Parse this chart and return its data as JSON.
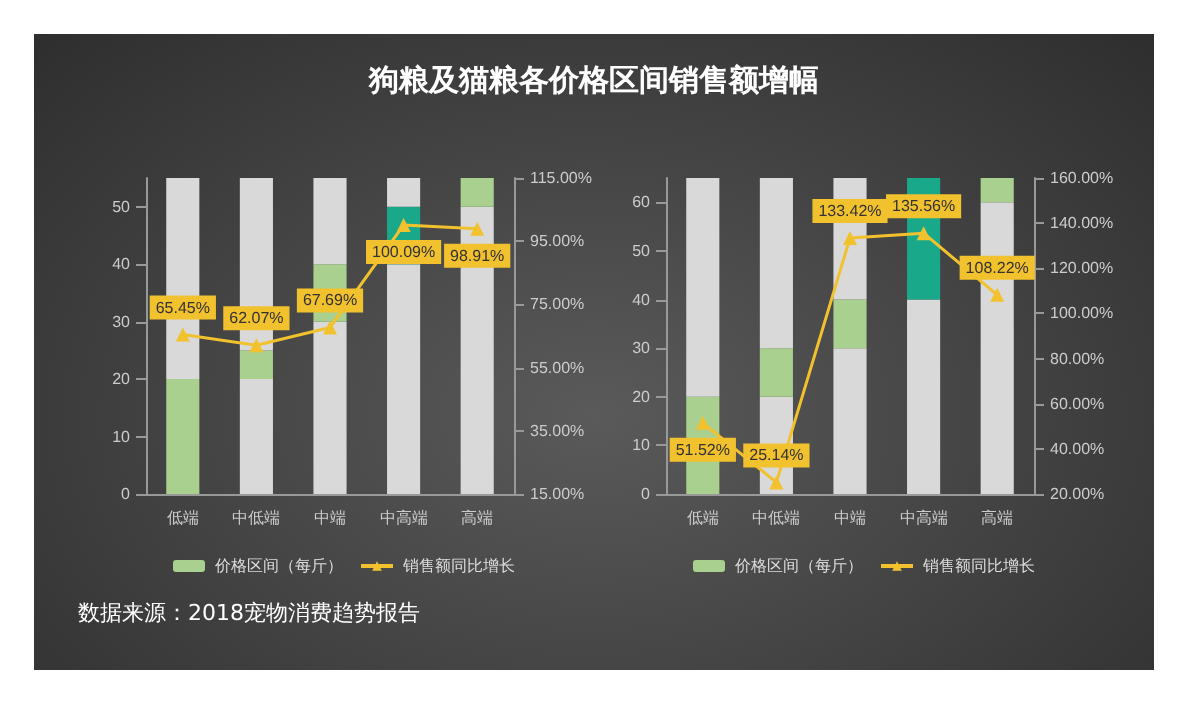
{
  "chart_data": [
    {
      "type": "bar",
      "title": "狗粮及猫粮各价格区间销售额增幅",
      "annotations": [
        "数据来源：2018宠物消费趋势报告"
      ],
      "categories": [
        "低端",
        "中低端",
        "中端",
        "中高端",
        "高端"
      ],
      "stacked": true,
      "ylim": [
        0,
        55
      ],
      "yticks": [
        0,
        10,
        20,
        30,
        40,
        50
      ],
      "y2lim": [
        15,
        115
      ],
      "y2ticks": [
        {
          "value": 15,
          "label": "15.00%"
        },
        {
          "value": 35,
          "label": "35.00%"
        },
        {
          "value": 55,
          "label": "55.00%"
        },
        {
          "value": 75,
          "label": "75.00%"
        },
        {
          "value": 95,
          "label": "95.00%"
        },
        {
          "value": 115,
          "label": "115.00%"
        }
      ],
      "grid": false,
      "legend": "bottom",
      "series": [
        {
          "color": "#d9d9d9",
          "values": [
            0,
            20,
            30,
            40,
            50
          ]
        },
        {
          "name": "价格区间（每斤）",
          "color": "#a9d08e",
          "colors": [
            "#a9d08e",
            "#a9d08e",
            "#a9d08e",
            "#1aa88a",
            "#a9d08e"
          ],
          "values": [
            20,
            5,
            10,
            10,
            5
          ]
        },
        {
          "color": "#d9d9d9",
          "values": [
            35,
            30,
            15,
            5,
            0
          ]
        },
        {
          "type": "line",
          "axis": "y2",
          "name": "销售额同比增长",
          "color": "#f2c12e",
          "marker": "triangle",
          "values": [
            65.45,
            62.07,
            67.69,
            100.09,
            98.91
          ],
          "value_labels": [
            "65.45%",
            "62.07%",
            "67.69%",
            "100.09%",
            "98.91%"
          ]
        }
      ]
    },
    {
      "type": "bar",
      "categories": [
        "低端",
        "中低端",
        "中端",
        "中高端",
        "高端"
      ],
      "stacked": true,
      "ylim": [
        0,
        65
      ],
      "yticks": [
        0,
        10,
        20,
        30,
        40,
        50,
        60
      ],
      "y2lim": [
        20,
        160
      ],
      "y2ticks": [
        {
          "value": 20,
          "label": "20.00%"
        },
        {
          "value": 40,
          "label": "40.00%"
        },
        {
          "value": 60,
          "label": "60.00%"
        },
        {
          "value": 80,
          "label": "80.00%"
        },
        {
          "value": 100,
          "label": "100.00%"
        },
        {
          "value": 120,
          "label": "120.00%"
        },
        {
          "value": 140,
          "label": "140.00%"
        },
        {
          "value": 160,
          "label": "160.00%"
        }
      ],
      "grid": false,
      "legend": "bottom",
      "series": [
        {
          "color": "#d9d9d9",
          "values": [
            0,
            20,
            30,
            40,
            60
          ]
        },
        {
          "name": "价格区间（每斤）",
          "color": "#a9d08e",
          "colors": [
            "#a9d08e",
            "#a9d08e",
            "#a9d08e",
            "#1aa88a",
            "#a9d08e"
          ],
          "values": [
            20,
            10,
            10,
            25,
            5
          ]
        },
        {
          "color": "#d9d9d9",
          "values": [
            45,
            35,
            25,
            0,
            0
          ]
        },
        {
          "type": "line",
          "axis": "y2",
          "name": "销售额同比增长",
          "color": "#f2c12e",
          "marker": "triangle",
          "values": [
            51.52,
            25.14,
            133.42,
            135.56,
            108.22
          ],
          "value_labels": [
            "51.52%",
            "25.14%",
            "133.42%",
            "135.56%",
            "108.22%"
          ]
        }
      ]
    }
  ]
}
